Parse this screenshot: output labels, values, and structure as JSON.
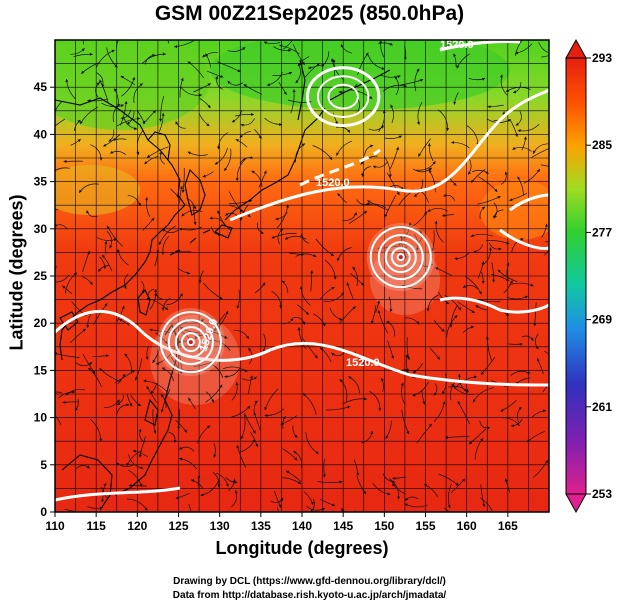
{
  "title": "GSM 00Z21Sep2025 (850.0hPa)",
  "x_axis": {
    "label": "Longitude (degrees)",
    "range": [
      110,
      170
    ],
    "ticks": [
      110,
      115,
      120,
      125,
      130,
      135,
      140,
      145,
      150,
      155,
      160,
      165
    ]
  },
  "y_axis": {
    "label": "Latitude  (degrees)",
    "range": [
      0,
      50
    ],
    "ticks": [
      0,
      5,
      10,
      15,
      20,
      25,
      30,
      35,
      40,
      45
    ]
  },
  "colorbar": {
    "range": [
      253,
      293
    ],
    "ticks": [
      293,
      285,
      277,
      269,
      261,
      253
    ],
    "colors": [
      "#e0208e",
      "#3030c0",
      "#1f8fe6",
      "#10c8a0",
      "#30d030",
      "#a0dc20",
      "#ffa000",
      "#ff5000",
      "#e62010"
    ]
  },
  "contour_labels": [
    "1520.0",
    "1520.0",
    "1520.0",
    "1520.0"
  ],
  "typhoons": [
    {
      "lon": 126.5,
      "lat": 18
    },
    {
      "lon": 152,
      "lat": 27
    }
  ],
  "low_pressure_center": {
    "lon": 145,
    "lat": 44
  },
  "credits": {
    "line1": "Drawing by DCL (https://www.gfd-dennou.org/library/dcl/)",
    "line2": "Data from http://database.rish.kyoto-u.ac.jp/arch/jmadata/"
  }
}
